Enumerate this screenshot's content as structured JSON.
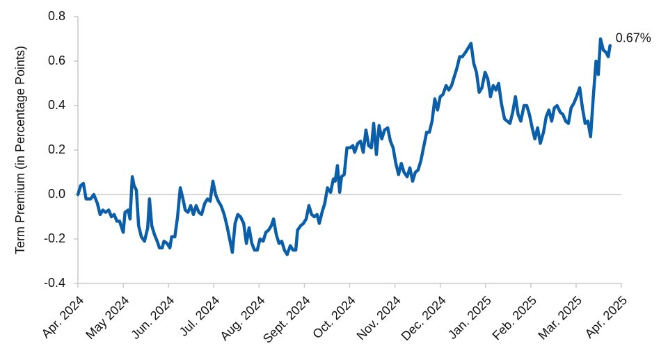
{
  "chart_data": {
    "type": "line",
    "y_label": "Term Premium (in Percentage Points)",
    "annotation": "0.67%",
    "xlim": [
      0,
      12
    ],
    "xticks": [
      {
        "value": 0,
        "label": "Apr. 2024"
      },
      {
        "value": 1,
        "label": "May 2024"
      },
      {
        "value": 2,
        "label": "Jun. 2024"
      },
      {
        "value": 3,
        "label": "Jul. 2024"
      },
      {
        "value": 4,
        "label": "Aug. 2024"
      },
      {
        "value": 5,
        "label": "Sept. 2024"
      },
      {
        "value": 6,
        "label": "Oct. 2024"
      },
      {
        "value": 7,
        "label": "Nov. 2024"
      },
      {
        "value": 8,
        "label": "Dec. 2024"
      },
      {
        "value": 9,
        "label": "Jan. 2025"
      },
      {
        "value": 10,
        "label": "Feb. 2025"
      },
      {
        "value": 11,
        "label": "Mar. 2025"
      },
      {
        "value": 12,
        "label": "Apr. 2025"
      }
    ],
    "ylim": [
      -0.4,
      0.8
    ],
    "yticks": [
      -0.4,
      -0.2,
      {
        "value": 0,
        "label": "0.0"
      },
      0.2,
      0.4,
      0.6,
      0.8
    ],
    "grid": false,
    "zero_line": true,
    "x": [
      0,
      0.06,
      0.12,
      0.18,
      0.28,
      0.35,
      0.43,
      0.49,
      0.55,
      0.61,
      0.68,
      0.74,
      0.8,
      0.86,
      0.92,
      1.0,
      1.04,
      1.11,
      1.15,
      1.2,
      1.24,
      1.29,
      1.34,
      1.4,
      1.47,
      1.54,
      1.58,
      1.63,
      1.69,
      1.75,
      1.8,
      1.86,
      1.9,
      1.97,
      2.03,
      2.07,
      2.14,
      2.2,
      2.26,
      2.32,
      2.37,
      2.43,
      2.49,
      2.55,
      2.61,
      2.67,
      2.73,
      2.8,
      2.86,
      2.92,
      2.98,
      3.04,
      3.1,
      3.16,
      3.23,
      3.29,
      3.35,
      3.41,
      3.47,
      3.53,
      3.59,
      3.66,
      3.72,
      3.78,
      3.84,
      3.9,
      3.96,
      4.02,
      4.09,
      4.15,
      4.21,
      4.27,
      4.32,
      4.38,
      4.44,
      4.5,
      4.56,
      4.62,
      4.69,
      4.75,
      4.81,
      4.85,
      4.92,
      4.98,
      5.04,
      5.1,
      5.16,
      5.22,
      5.28,
      5.33,
      5.39,
      5.45,
      5.51,
      5.58,
      5.64,
      5.68,
      5.73,
      5.78,
      5.82,
      5.88,
      5.94,
      6.01,
      6.07,
      6.11,
      6.18,
      6.24,
      6.3,
      6.36,
      6.42,
      6.48,
      6.53,
      6.59,
      6.65,
      6.71,
      6.77,
      6.84,
      6.9,
      6.96,
      7.02,
      7.08,
      7.14,
      7.2,
      7.27,
      7.33,
      7.39,
      7.45,
      7.51,
      7.57,
      7.63,
      7.7,
      7.76,
      7.82,
      7.88,
      7.94,
      8.0,
      8.06,
      8.13,
      8.19,
      8.25,
      8.31,
      8.37,
      8.43,
      8.49,
      8.56,
      8.62,
      8.68,
      8.74,
      8.8,
      8.86,
      8.92,
      8.99,
      9.05,
      9.11,
      9.17,
      9.23,
      9.29,
      9.35,
      9.42,
      9.48,
      9.54,
      9.6,
      9.66,
      9.72,
      9.78,
      9.85,
      9.91,
      9.97,
      10.03,
      10.09,
      10.15,
      10.21,
      10.28,
      10.34,
      10.4,
      10.46,
      10.52,
      10.58,
      10.65,
      10.71,
      10.77,
      10.83,
      10.89,
      10.95,
      11.01,
      11.08,
      11.14,
      11.2,
      11.26,
      11.32,
      11.38,
      11.44,
      11.49,
      11.54,
      11.6,
      11.66,
      11.71,
      11.75
    ],
    "series": [
      {
        "name": "Term Premium",
        "color": "#0b5ea8",
        "values": [
          0.0,
          0.04,
          0.05,
          -0.02,
          -0.02,
          0.0,
          -0.04,
          -0.09,
          -0.07,
          -0.08,
          -0.07,
          -0.1,
          -0.09,
          -0.12,
          -0.12,
          -0.17,
          -0.08,
          -0.07,
          -0.11,
          0.08,
          0.04,
          0.02,
          -0.14,
          -0.19,
          -0.21,
          -0.15,
          -0.02,
          -0.14,
          -0.18,
          -0.21,
          -0.24,
          -0.24,
          -0.21,
          -0.22,
          -0.24,
          -0.19,
          -0.19,
          -0.1,
          0.03,
          -0.02,
          -0.07,
          -0.08,
          -0.05,
          -0.09,
          -0.05,
          -0.08,
          -0.09,
          -0.04,
          -0.02,
          -0.03,
          0.06,
          0.0,
          -0.03,
          -0.05,
          -0.09,
          -0.14,
          -0.2,
          -0.26,
          -0.13,
          -0.09,
          -0.1,
          -0.13,
          -0.22,
          -0.15,
          -0.22,
          -0.25,
          -0.25,
          -0.2,
          -0.21,
          -0.17,
          -0.16,
          -0.14,
          -0.11,
          -0.18,
          -0.22,
          -0.21,
          -0.25,
          -0.27,
          -0.23,
          -0.25,
          -0.25,
          -0.16,
          -0.14,
          -0.13,
          -0.11,
          -0.05,
          -0.09,
          -0.1,
          -0.09,
          -0.13,
          -0.08,
          -0.04,
          0.03,
          0.01,
          0.07,
          0.06,
          0.13,
          0.01,
          0.08,
          0.09,
          0.21,
          0.21,
          0.22,
          0.19,
          0.23,
          0.24,
          0.19,
          0.29,
          0.22,
          0.21,
          0.32,
          0.18,
          0.31,
          0.25,
          0.29,
          0.3,
          0.24,
          0.21,
          0.14,
          0.09,
          0.14,
          0.1,
          0.08,
          0.12,
          0.06,
          0.1,
          0.11,
          0.15,
          0.21,
          0.28,
          0.28,
          0.33,
          0.43,
          0.38,
          0.44,
          0.45,
          0.49,
          0.47,
          0.49,
          0.53,
          0.57,
          0.62,
          0.62,
          0.64,
          0.66,
          0.68,
          0.59,
          0.55,
          0.46,
          0.48,
          0.55,
          0.52,
          0.44,
          0.49,
          0.47,
          0.5,
          0.41,
          0.34,
          0.33,
          0.32,
          0.37,
          0.44,
          0.36,
          0.33,
          0.4,
          0.4,
          0.36,
          0.3,
          0.25,
          0.3,
          0.23,
          0.28,
          0.35,
          0.38,
          0.33,
          0.39,
          0.4,
          0.37,
          0.36,
          0.33,
          0.32,
          0.39,
          0.41,
          0.44,
          0.48,
          0.39,
          0.32,
          0.33,
          0.26,
          0.44,
          0.6,
          0.54,
          0.7,
          0.65,
          0.64,
          0.62,
          0.67
        ]
      }
    ]
  }
}
